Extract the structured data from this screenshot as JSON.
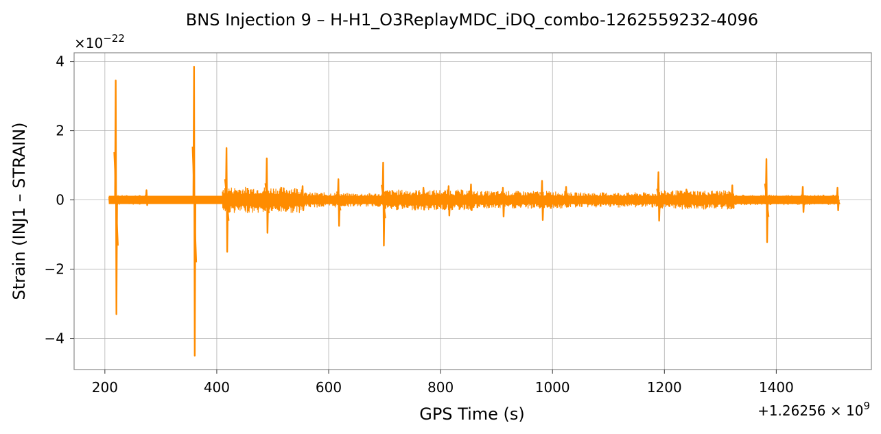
{
  "chart_data": {
    "type": "line",
    "title": "BNS Injection 9 – H-H1_O3ReplayMDC_iDQ_combo-1262559232-4096",
    "xlabel": "GPS Time (s)",
    "ylabel": "Strain (INJ1 – STRAIN)",
    "x_offset_label": "+1.26256 × 10",
    "x_offset_exp": "9",
    "y_scale_label": "×10",
    "y_scale_exp": "−22",
    "xlim": [
      145,
      1570
    ],
    "ylim": [
      -4.9,
      4.25
    ],
    "xticks": [
      200,
      400,
      600,
      800,
      1000,
      1200,
      1400
    ],
    "xtick_labels": [
      "200",
      "400",
      "600",
      "800",
      "1000",
      "1200",
      "1400"
    ],
    "yticks": [
      -4,
      -2,
      0,
      2,
      4
    ],
    "ytick_labels": [
      "−4",
      "−2",
      "0",
      "2",
      "4"
    ],
    "grid": true,
    "line_color": "#ff8c00",
    "series": [
      {
        "x_range": [
          207,
          1512
        ],
        "baseline_band": 0.12,
        "noise_segments": [
          {
            "x": [
              207,
              222
            ],
            "amp": 0.12
          },
          {
            "x": [
              222,
              275
            ],
            "amp": 0.14
          },
          {
            "x": [
              275,
              410
            ],
            "amp": 0.08
          },
          {
            "x": [
              410,
              555
            ],
            "amp": 0.38
          },
          {
            "x": [
              555,
              615
            ],
            "amp": 0.22
          },
          {
            "x": [
              615,
              700
            ],
            "amp": 0.2
          },
          {
            "x": [
              700,
              860
            ],
            "amp": 0.3
          },
          {
            "x": [
              860,
              1030
            ],
            "amp": 0.26
          },
          {
            "x": [
              1030,
              1190
            ],
            "amp": 0.22
          },
          {
            "x": [
              1190,
              1325
            ],
            "amp": 0.28
          },
          {
            "x": [
              1325,
              1385
            ],
            "amp": 0.15
          },
          {
            "x": [
              1385,
              1512
            ],
            "amp": 0.15
          }
        ],
        "glitches": [
          {
            "x": 220,
            "max": 3.45,
            "min": -3.3
          },
          {
            "x": 275,
            "max": 0.28,
            "min": -0.15
          },
          {
            "x": 360,
            "max": 3.85,
            "min": -4.5
          },
          {
            "x": 418,
            "max": 1.5,
            "min": -1.5
          },
          {
            "x": 490,
            "max": 1.2,
            "min": -0.95
          },
          {
            "x": 554,
            "max": 0.4,
            "min": -0.3
          },
          {
            "x": 618,
            "max": 0.6,
            "min": -0.75
          },
          {
            "x": 698,
            "max": 1.08,
            "min": -1.32
          },
          {
            "x": 770,
            "max": 0.35,
            "min": -0.28
          },
          {
            "x": 815,
            "max": 0.4,
            "min": -0.45
          },
          {
            "x": 855,
            "max": 0.45,
            "min": -0.3
          },
          {
            "x": 912,
            "max": 0.35,
            "min": -0.48
          },
          {
            "x": 982,
            "max": 0.55,
            "min": -0.58
          },
          {
            "x": 1025,
            "max": 0.38,
            "min": -0.2
          },
          {
            "x": 1190,
            "max": 0.8,
            "min": -0.6
          },
          {
            "x": 1240,
            "max": 0.3,
            "min": -0.2
          },
          {
            "x": 1322,
            "max": 0.42,
            "min": -0.22
          },
          {
            "x": 1383,
            "max": 1.18,
            "min": -1.22
          },
          {
            "x": 1448,
            "max": 0.38,
            "min": -0.35
          },
          {
            "x": 1510,
            "max": 0.35,
            "min": -0.3
          }
        ]
      }
    ]
  }
}
